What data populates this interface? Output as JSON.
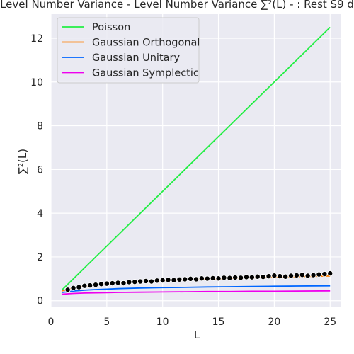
{
  "chart_data": {
    "type": "line",
    "title": "Level Number Variance - Level Number Variance ∑²(L) - : Rest S9 d",
    "xlabel": "L",
    "ylabel": "∑²(L)",
    "xlim": [
      0,
      26
    ],
    "ylim": [
      -0.3,
      13.1
    ],
    "xticks": [
      0,
      5,
      10,
      15,
      20,
      25
    ],
    "yticks": [
      0,
      2,
      4,
      6,
      8,
      10,
      12
    ],
    "grid": true,
    "background": "#eaeaf2",
    "legend_position": "top-left",
    "series": [
      {
        "name": "Poisson",
        "color": "#22ee44",
        "kind": "line",
        "x": [
          1,
          25
        ],
        "y": [
          0.5,
          12.5
        ]
      },
      {
        "name": "Gaussian Orthogonal",
        "color": "#ff8000",
        "kind": "line",
        "x": [
          1,
          2,
          3,
          4,
          5,
          6,
          8,
          10,
          12,
          14,
          16,
          18,
          20,
          22,
          25
        ],
        "y": [
          0.45,
          0.58,
          0.66,
          0.72,
          0.77,
          0.81,
          0.87,
          0.92,
          0.96,
          0.99,
          1.02,
          1.05,
          1.08,
          1.1,
          1.13
        ]
      },
      {
        "name": "Gaussian Unitary",
        "color": "#0066ff",
        "kind": "line",
        "x": [
          1,
          2,
          3,
          4,
          5,
          6,
          8,
          10,
          12,
          14,
          16,
          18,
          20,
          22,
          25
        ],
        "y": [
          0.38,
          0.44,
          0.48,
          0.51,
          0.53,
          0.55,
          0.58,
          0.6,
          0.61,
          0.63,
          0.64,
          0.65,
          0.66,
          0.67,
          0.68
        ]
      },
      {
        "name": "Gaussian Symplectic",
        "color": "#ee00ee",
        "kind": "line",
        "x": [
          1,
          2,
          3,
          4,
          5,
          6,
          8,
          10,
          12,
          14,
          16,
          18,
          20,
          22,
          25
        ],
        "y": [
          0.3,
          0.33,
          0.35,
          0.36,
          0.37,
          0.38,
          0.39,
          0.4,
          0.41,
          0.42,
          0.42,
          0.43,
          0.43,
          0.44,
          0.45
        ]
      }
    ],
    "scatter": {
      "color": "#000000",
      "x": [
        1.5,
        2.0,
        2.5,
        3.0,
        3.5,
        4.0,
        4.5,
        5.0,
        5.5,
        6.0,
        6.5,
        7.0,
        7.5,
        8.0,
        8.5,
        9.0,
        9.5,
        10.0,
        10.5,
        11.0,
        11.5,
        12.0,
        12.5,
        13.0,
        13.5,
        14.0,
        14.5,
        15.0,
        15.5,
        16.0,
        16.5,
        17.0,
        17.5,
        18.0,
        18.5,
        19.0,
        19.5,
        20.0,
        20.5,
        21.0,
        21.5,
        22.0,
        22.5,
        23.0,
        23.5,
        24.0,
        24.5,
        25.0
      ],
      "y": [
        0.5,
        0.58,
        0.62,
        0.68,
        0.7,
        0.73,
        0.76,
        0.78,
        0.8,
        0.82,
        0.8,
        0.85,
        0.86,
        0.88,
        0.9,
        0.88,
        0.92,
        0.93,
        0.95,
        0.94,
        0.97,
        0.98,
        1.0,
        0.98,
        1.02,
        1.01,
        1.03,
        1.02,
        1.05,
        1.04,
        1.06,
        1.05,
        1.08,
        1.07,
        1.1,
        1.09,
        1.12,
        1.15,
        1.12,
        1.1,
        1.14,
        1.16,
        1.18,
        1.14,
        1.17,
        1.2,
        1.22,
        1.25
      ]
    }
  }
}
